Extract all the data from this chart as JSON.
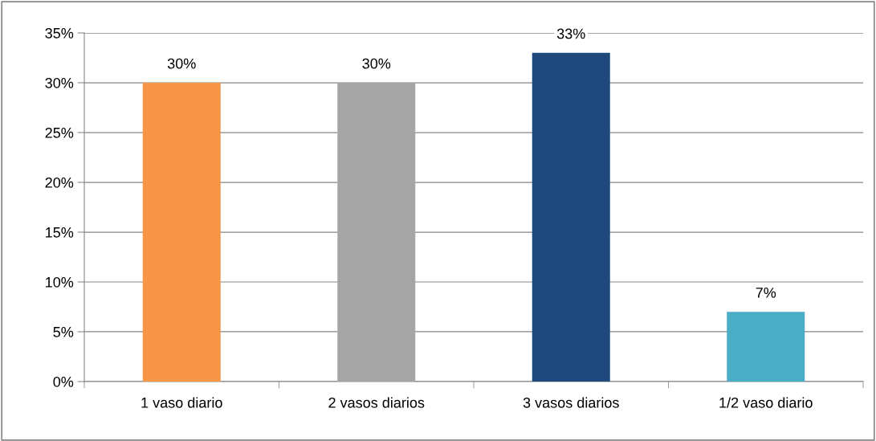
{
  "chart_data": {
    "type": "bar",
    "categories": [
      "1 vaso diario",
      "2 vasos diarios",
      "3 vasos diarios",
      "1/2 vaso diario"
    ],
    "values": [
      30,
      30,
      33,
      7
    ],
    "colors": [
      "#f79646",
      "#a5a5a5",
      "#1f497d",
      "#4bacc6"
    ],
    "value_labels": [
      "30%",
      "30%",
      "33%",
      "7%"
    ],
    "ylim": [
      0,
      35
    ],
    "yticks": [
      {
        "value": 0,
        "label": "0%"
      },
      {
        "value": 5,
        "label": "5%"
      },
      {
        "value": 10,
        "label": "10%"
      },
      {
        "value": 15,
        "label": "15%"
      },
      {
        "value": 20,
        "label": "20%"
      },
      {
        "value": 25,
        "label": "25%"
      },
      {
        "value": 30,
        "label": "30%"
      },
      {
        "value": 35,
        "label": "35%"
      }
    ],
    "grid": "y",
    "legend": false
  }
}
